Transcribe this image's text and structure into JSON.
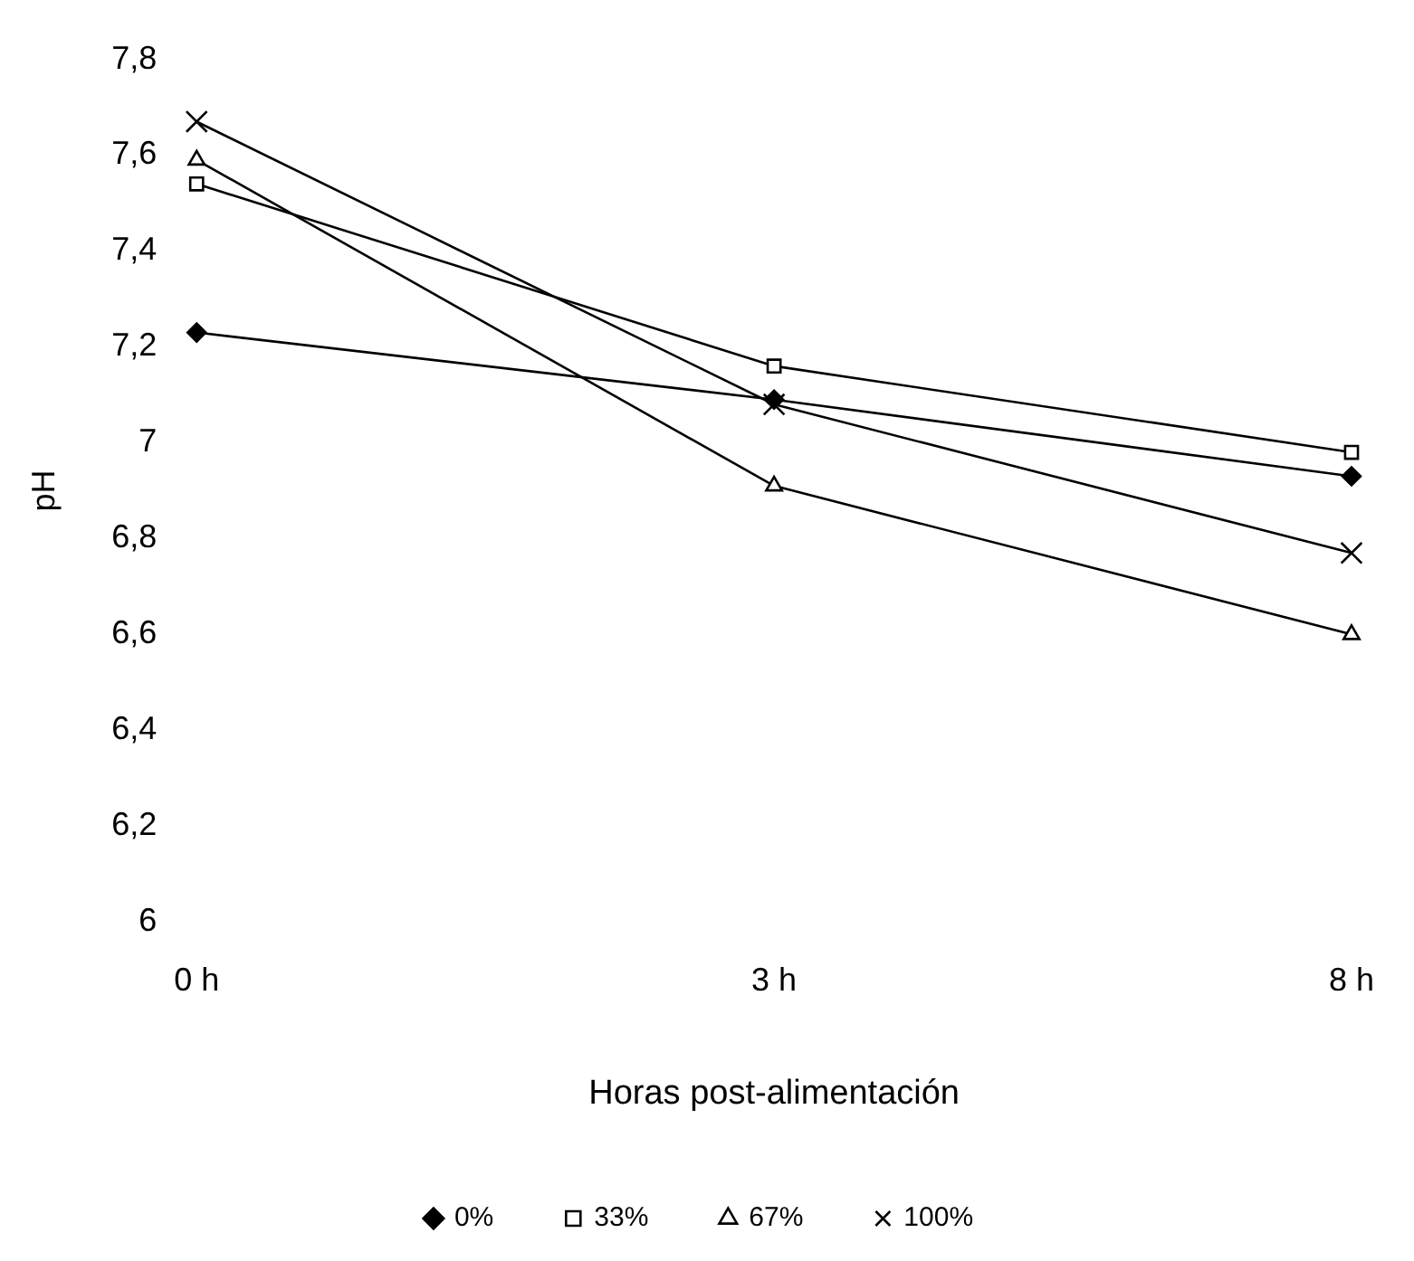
{
  "chart_data": {
    "type": "line",
    "xlabel": "Horas post-alimentación",
    "ylabel": "pH",
    "categories": [
      "0 h",
      "3 h",
      "8 h"
    ],
    "ylim": [
      6,
      7.8
    ],
    "yticks": [
      {
        "value": 6,
        "label": "6"
      },
      {
        "value": 6.2,
        "label": "6,2"
      },
      {
        "value": 6.4,
        "label": "6,4"
      },
      {
        "value": 6.6,
        "label": "6,6"
      },
      {
        "value": 6.8,
        "label": "6,8"
      },
      {
        "value": 7,
        "label": "7"
      },
      {
        "value": 7.2,
        "label": "7,2"
      },
      {
        "value": 7.4,
        "label": "7,4"
      },
      {
        "value": 7.6,
        "label": "7,6"
      },
      {
        "value": 7.8,
        "label": "7,8"
      }
    ],
    "grid": false,
    "legend": "bottom",
    "line_style": "solid",
    "series": [
      {
        "name": "0%",
        "color": "#000000",
        "marker": "diamond",
        "values": [
          7.23,
          7.09,
          6.93
        ]
      },
      {
        "name": "33%",
        "color": "#000000",
        "marker": "square",
        "values": [
          7.54,
          7.16,
          6.98
        ]
      },
      {
        "name": "67%",
        "color": "#000000",
        "marker": "triangle",
        "values": [
          7.59,
          6.91,
          6.6
        ]
      },
      {
        "name": "100%",
        "color": "#000000",
        "marker": "cross",
        "values": [
          7.67,
          7.08,
          6.77
        ]
      }
    ]
  }
}
